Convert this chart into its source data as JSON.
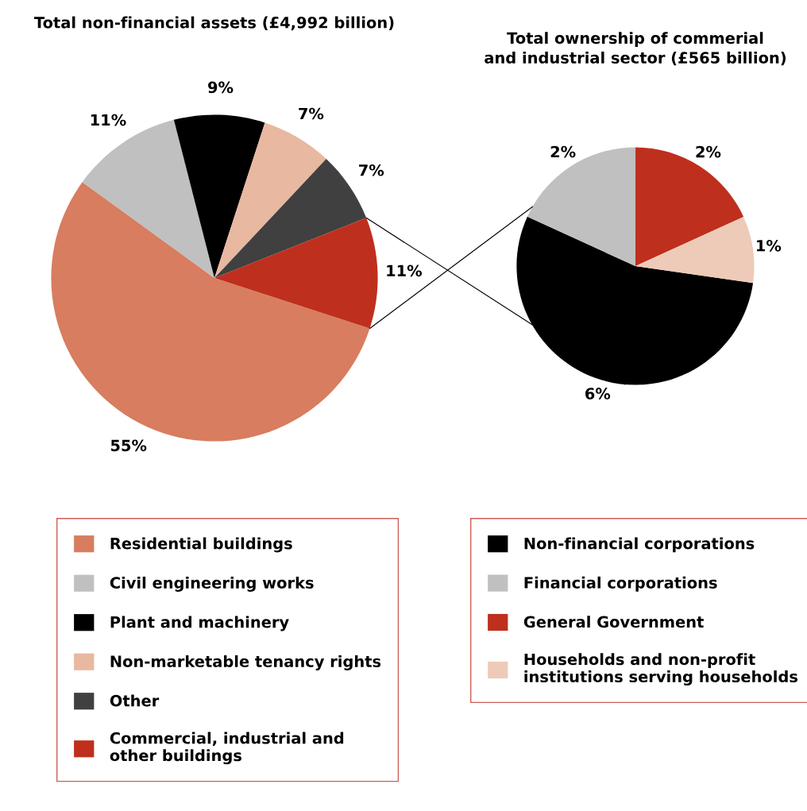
{
  "chart_data": [
    {
      "type": "pie",
      "title": "Total non-financial assets (£4,992 billion)",
      "categories": [
        "Residential buildings",
        "Civil engineering works",
        "Plant and machinery",
        "Non-marketable tenancy rights",
        "Other",
        "Commercial, industrial and\nother buildings"
      ],
      "values": [
        55,
        11,
        9,
        7,
        7,
        11
      ],
      "colors": [
        "#d87d5f",
        "#c0c0c0",
        "#000000",
        "#e8b8a0",
        "#404040",
        "#bf2f1d"
      ],
      "value_labels": [
        "55%",
        "11%",
        "9%",
        "7%",
        "7%",
        "11%"
      ],
      "legend": "bottom"
    },
    {
      "type": "pie",
      "title": "Total ownership of commerial\nand industrial sector (£565 billion)",
      "categories": [
        "Non-financial corporations",
        "Financial corporations",
        "General Government",
        "Households and non-profit\ninstitutions serving households"
      ],
      "values": [
        6,
        2,
        2,
        1
      ],
      "colors": [
        "#000000",
        "#c0c0c0",
        "#bf2f1d",
        "#edcbb8"
      ],
      "value_labels": [
        "6%",
        "2%",
        "2%",
        "1%"
      ],
      "legend": "bottom"
    }
  ]
}
